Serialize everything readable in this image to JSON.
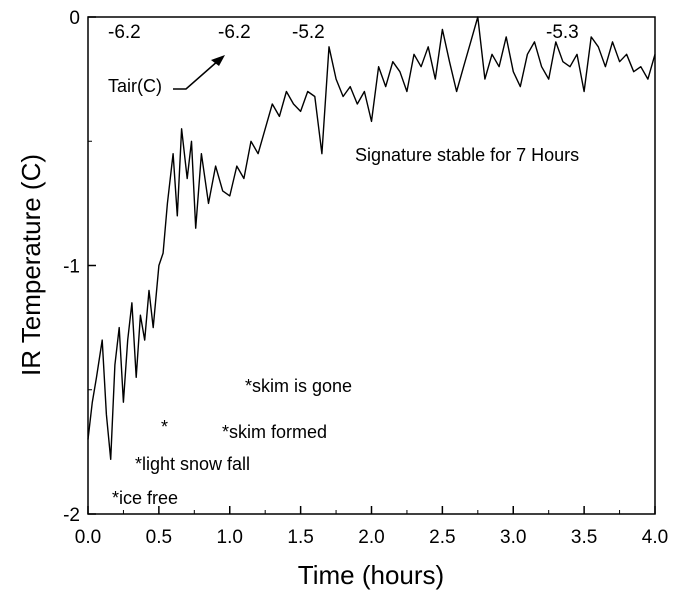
{
  "chart_data": {
    "type": "line",
    "xlabel": "Time (hours)",
    "ylabel": "IR Temperature (C)",
    "xlim": [
      0.0,
      4.0
    ],
    "ylim": [
      -2,
      0
    ],
    "x_ticks": [
      0.0,
      0.5,
      1.0,
      1.5,
      2.0,
      2.5,
      3.0,
      3.5,
      4.0
    ],
    "x_tick_labels": [
      "0.0",
      "0.5",
      "1.0",
      "1.5",
      "2.0",
      "2.5",
      "3.0",
      "3.5",
      "4.0"
    ],
    "y_ticks": [
      0,
      -1,
      -2
    ],
    "y_tick_labels": [
      "0",
      "-1",
      "-2"
    ],
    "grid": false,
    "series": [
      {
        "x": [
          0.0,
          0.03,
          0.06,
          0.1,
          0.13,
          0.16,
          0.19,
          0.22,
          0.25,
          0.28,
          0.31,
          0.34,
          0.37,
          0.4,
          0.43,
          0.46,
          0.5,
          0.53,
          0.56,
          0.6,
          0.63,
          0.66,
          0.7,
          0.73,
          0.76,
          0.8,
          0.85,
          0.9,
          0.95,
          1.0,
          1.05,
          1.1,
          1.15,
          1.2,
          1.25,
          1.3,
          1.35,
          1.4,
          1.45,
          1.5,
          1.55,
          1.6,
          1.65,
          1.7,
          1.75,
          1.8,
          1.85,
          1.9,
          1.95,
          2.0,
          2.05,
          2.1,
          2.15,
          2.2,
          2.25,
          2.3,
          2.35,
          2.4,
          2.45,
          2.5,
          2.55,
          2.6,
          2.65,
          2.7,
          2.75,
          2.8,
          2.85,
          2.9,
          2.95,
          3.0,
          3.05,
          3.1,
          3.15,
          3.2,
          3.25,
          3.3,
          3.35,
          3.4,
          3.45,
          3.5,
          3.55,
          3.6,
          3.65,
          3.7,
          3.75,
          3.8,
          3.85,
          3.9,
          3.95,
          4.0
        ],
        "y": [
          -1.7,
          -1.55,
          -1.45,
          -1.3,
          -1.6,
          -1.78,
          -1.4,
          -1.25,
          -1.55,
          -1.3,
          -1.15,
          -1.45,
          -1.2,
          -1.3,
          -1.1,
          -1.25,
          -1.0,
          -0.95,
          -0.75,
          -0.55,
          -0.8,
          -0.45,
          -0.65,
          -0.5,
          -0.85,
          -0.55,
          -0.75,
          -0.6,
          -0.7,
          -0.72,
          -0.6,
          -0.65,
          -0.5,
          -0.55,
          -0.45,
          -0.35,
          -0.4,
          -0.3,
          -0.35,
          -0.38,
          -0.3,
          -0.32,
          -0.55,
          -0.12,
          -0.25,
          -0.32,
          -0.28,
          -0.35,
          -0.3,
          -0.42,
          -0.2,
          -0.28,
          -0.18,
          -0.22,
          -0.3,
          -0.15,
          -0.2,
          -0.12,
          -0.25,
          -0.05,
          -0.18,
          -0.3,
          -0.2,
          -0.1,
          0.0,
          -0.25,
          -0.15,
          -0.2,
          -0.08,
          -0.22,
          -0.28,
          -0.15,
          -0.1,
          -0.2,
          -0.25,
          -0.1,
          -0.18,
          -0.2,
          -0.15,
          -0.3,
          -0.08,
          -0.12,
          -0.2,
          -0.1,
          -0.18,
          -0.15,
          -0.22,
          -0.2,
          -0.25,
          -0.15
        ]
      }
    ],
    "annotations": {
      "top_labels": [
        "-6.2",
        "-6.2",
        "-5.2",
        "-5.3"
      ],
      "tair_label": "Tair(C)",
      "signature": "Signature stable for 7 Hours",
      "skim_gone": "*skim is gone",
      "asterisk": "*",
      "skim_formed": "*skim formed",
      "light_snow": "*light snow fall",
      "ice_free": "*ice free"
    }
  }
}
